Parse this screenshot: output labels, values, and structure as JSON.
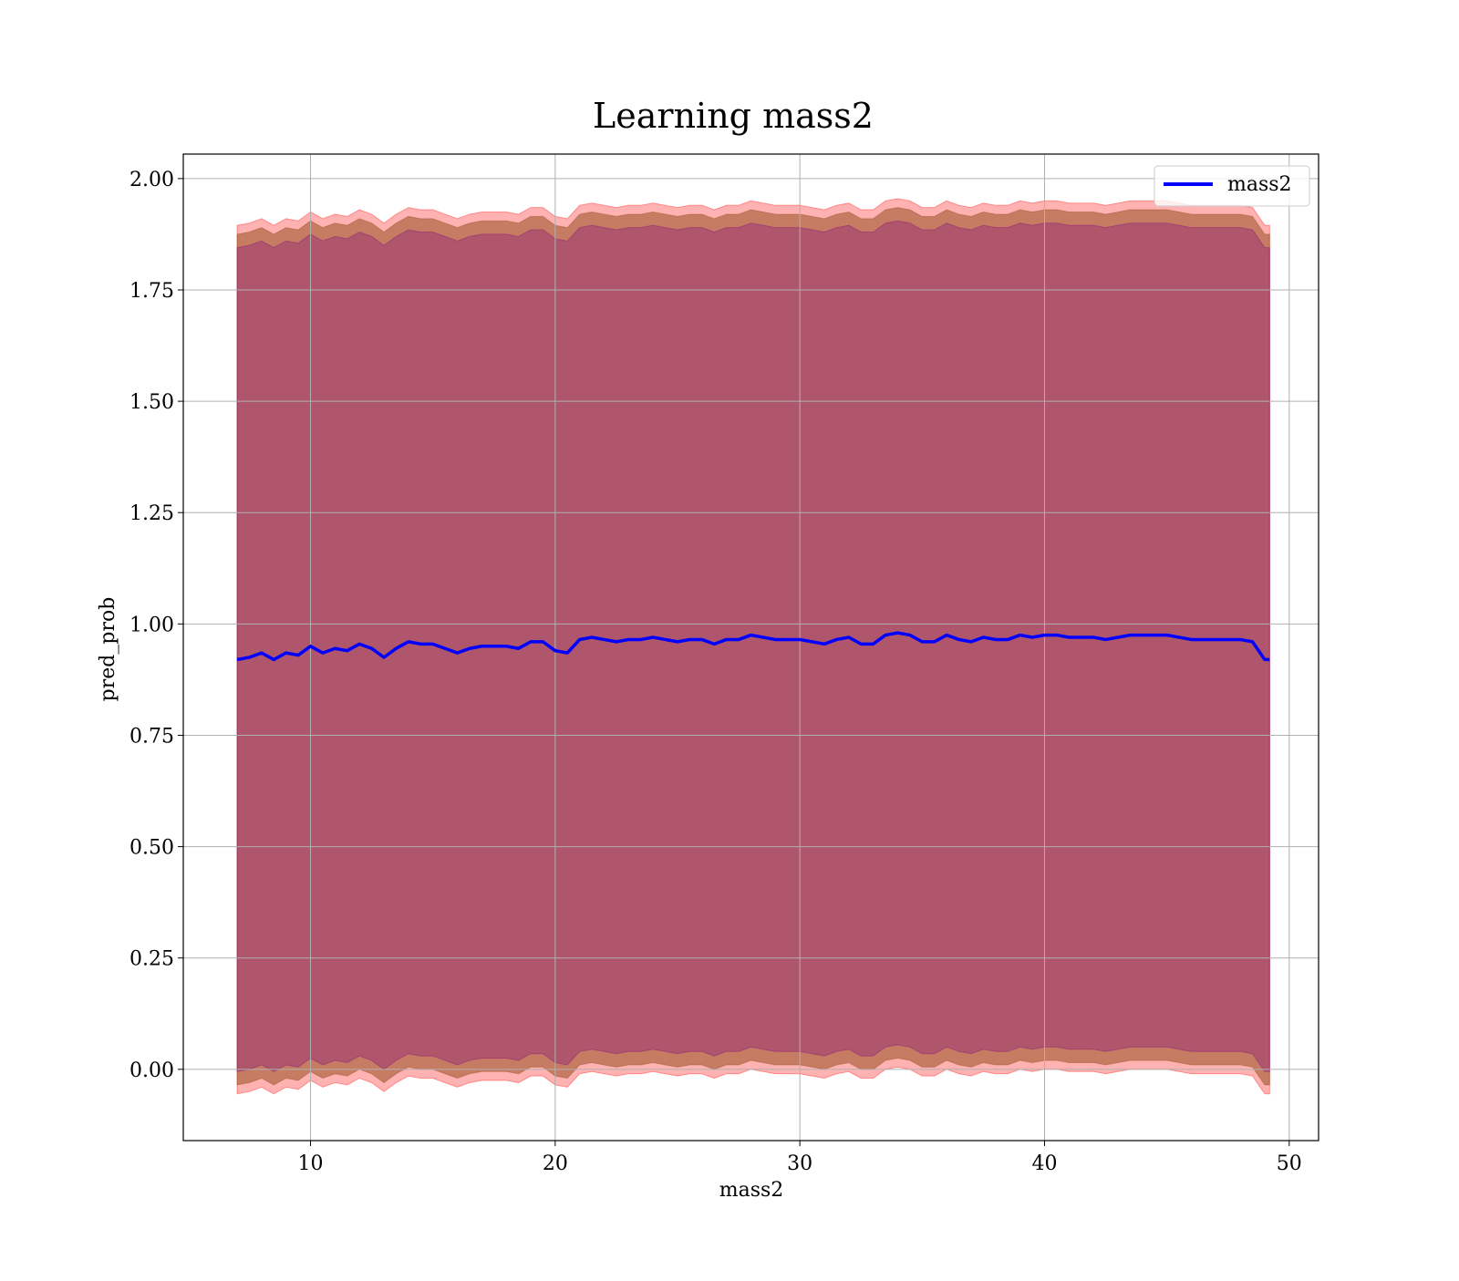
{
  "chart_data": {
    "type": "area",
    "title": "Learning mass2",
    "xlabel": "mass2",
    "ylabel": "pred_prob",
    "xlim": [
      4.8,
      51.2
    ],
    "ylim": [
      -0.16,
      2.055
    ],
    "x_ticks": [
      10,
      20,
      30,
      40,
      50
    ],
    "y_ticks": [
      0.0,
      0.25,
      0.5,
      0.75,
      1.0,
      1.25,
      1.5,
      1.75,
      2.0
    ],
    "x_tick_labels": [
      "10",
      "20",
      "30",
      "40",
      "50"
    ],
    "y_tick_labels": [
      "0.00",
      "0.25",
      "0.50",
      "0.75",
      "1.00",
      "1.25",
      "1.50",
      "1.75",
      "2.00"
    ],
    "grid": true,
    "legend_position": "top-right",
    "colors": {
      "line": "#0000ff",
      "outer_band": "#ff0000",
      "middle_band": "#8b4513",
      "inner_band": "#800080"
    },
    "band_half_widths": {
      "outer": 0.975,
      "middle": 0.955,
      "inner": 0.925
    },
    "x": [
      7,
      7.5,
      8,
      8.5,
      9,
      9.5,
      10,
      10.5,
      11,
      11.5,
      12,
      12.5,
      13,
      13.5,
      14,
      14.5,
      15,
      15.5,
      16,
      16.5,
      17,
      17.5,
      18,
      18.5,
      19,
      19.5,
      20,
      20.5,
      21,
      21.5,
      22,
      22.5,
      23,
      23.5,
      24,
      24.5,
      25,
      25.5,
      26,
      26.5,
      27,
      27.5,
      28,
      28.5,
      29,
      29.5,
      30,
      30.5,
      31,
      31.5,
      32,
      32.5,
      33,
      33.5,
      34,
      34.5,
      35,
      35.5,
      36,
      36.5,
      37,
      37.5,
      38,
      38.5,
      39,
      39.5,
      40,
      40.5,
      41,
      41.5,
      42,
      42.5,
      43,
      43.5,
      44,
      44.5,
      45,
      45.5,
      46,
      46.5,
      47,
      47.5,
      48,
      48.5,
      49,
      49.2
    ],
    "series": [
      {
        "name": "mass2",
        "values": [
          0.92,
          0.925,
          0.935,
          0.92,
          0.935,
          0.93,
          0.95,
          0.935,
          0.945,
          0.94,
          0.955,
          0.945,
          0.925,
          0.945,
          0.96,
          0.955,
          0.955,
          0.945,
          0.935,
          0.945,
          0.95,
          0.95,
          0.95,
          0.945,
          0.96,
          0.96,
          0.94,
          0.935,
          0.965,
          0.97,
          0.965,
          0.96,
          0.965,
          0.965,
          0.97,
          0.965,
          0.96,
          0.965,
          0.965,
          0.955,
          0.965,
          0.965,
          0.975,
          0.97,
          0.965,
          0.965,
          0.965,
          0.96,
          0.955,
          0.965,
          0.97,
          0.955,
          0.955,
          0.975,
          0.98,
          0.975,
          0.96,
          0.96,
          0.975,
          0.965,
          0.96,
          0.97,
          0.965,
          0.965,
          0.975,
          0.97,
          0.975,
          0.975,
          0.97,
          0.97,
          0.97,
          0.965,
          0.97,
          0.975,
          0.975,
          0.975,
          0.975,
          0.97,
          0.965,
          0.965,
          0.965,
          0.965,
          0.965,
          0.96,
          0.92,
          0.92
        ]
      }
    ]
  }
}
